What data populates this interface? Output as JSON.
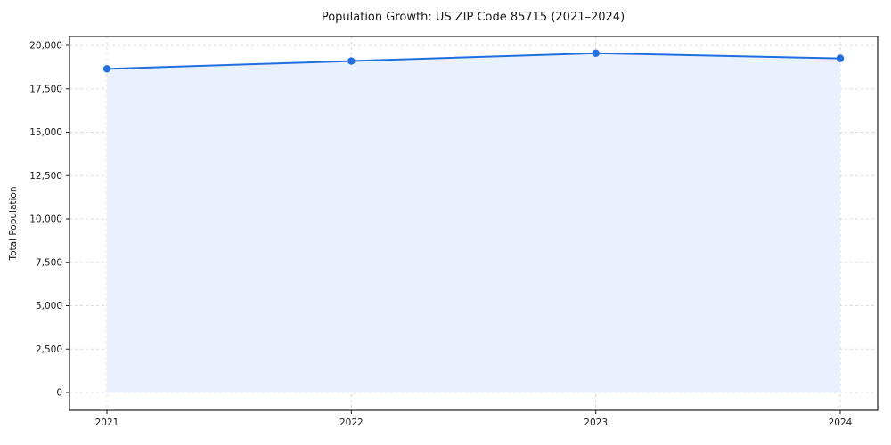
{
  "chart_data": {
    "type": "area",
    "title": "Population Growth: US ZIP Code 85715 (2021–2024)",
    "xlabel": "",
    "ylabel": "Total Population",
    "x": [
      "2021",
      "2022",
      "2023",
      "2024"
    ],
    "series": [
      {
        "name": "Total Population",
        "values": [
          18650,
          19100,
          19550,
          19250
        ]
      }
    ],
    "ylim": [
      0,
      20000
    ],
    "yticks": [
      0,
      2500,
      5000,
      7500,
      10000,
      12500,
      15000,
      17500,
      20000
    ],
    "grid": true,
    "grid_style": "dashed",
    "legend": "none",
    "line_color": "#1f6fe0",
    "fill_color": "#e8f1fd",
    "grid_color": "#d9d9d9",
    "spine_color": "#1a1a1a",
    "marker": "circle"
  }
}
